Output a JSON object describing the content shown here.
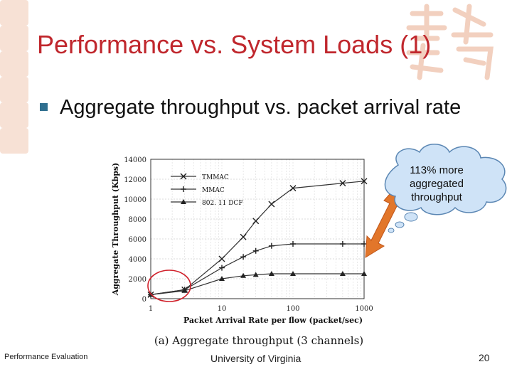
{
  "slide": {
    "title": "Performance vs. System Loads (1)",
    "bullet": "Aggregate throughput vs. packet arrival rate",
    "callout": "113% more aggregated throughput",
    "footer_left": "Performance Evaluation",
    "footer_center": "University of Virginia",
    "page_number": "20"
  },
  "colors": {
    "title": "#c0272d",
    "bullet": "#2f6f8f",
    "callout_fill": "#cfe3f7",
    "arrow": "#e2762a",
    "highlight_circle": "#d0202a"
  },
  "chart_data": {
    "type": "line",
    "caption": "(a)  Aggregate throughput (3 channels)",
    "xlabel": "Packet Arrival Rate per flow (packet/sec)",
    "ylabel": "Aggregate Throughput (Kbps)",
    "xscale": "log",
    "xlim": [
      1,
      1000
    ],
    "ylim": [
      0,
      14000
    ],
    "xticks": [
      1,
      10,
      100,
      1000
    ],
    "xtick_labels": [
      "1",
      "10",
      "100",
      "1000"
    ],
    "yticks": [
      0,
      2000,
      4000,
      6000,
      8000,
      10000,
      12000,
      14000
    ],
    "ytick_labels": [
      "0",
      "2000",
      "4000",
      "6000",
      "8000",
      "10000",
      "12000",
      "14000"
    ],
    "grid": true,
    "legend_position": "top-left",
    "series": [
      {
        "name": "TMMAC",
        "marker": "x",
        "points": [
          [
            1,
            400
          ],
          [
            3,
            900
          ],
          [
            10,
            4000
          ],
          [
            20,
            6200
          ],
          [
            30,
            7800
          ],
          [
            50,
            9500
          ],
          [
            100,
            11100
          ],
          [
            500,
            11600
          ],
          [
            1000,
            11800
          ]
        ]
      },
      {
        "name": "MMAC",
        "marker": "plus",
        "points": [
          [
            1,
            400
          ],
          [
            3,
            900
          ],
          [
            10,
            3100
          ],
          [
            20,
            4200
          ],
          [
            30,
            4800
          ],
          [
            50,
            5300
          ],
          [
            100,
            5500
          ],
          [
            500,
            5500
          ],
          [
            1000,
            5500
          ]
        ]
      },
      {
        "name": "802. 11  DCF",
        "marker": "triangle",
        "points": [
          [
            1,
            400
          ],
          [
            3,
            800
          ],
          [
            10,
            2000
          ],
          [
            20,
            2300
          ],
          [
            30,
            2400
          ],
          [
            50,
            2500
          ],
          [
            100,
            2500
          ],
          [
            500,
            2500
          ],
          [
            1000,
            2500
          ]
        ]
      }
    ]
  }
}
